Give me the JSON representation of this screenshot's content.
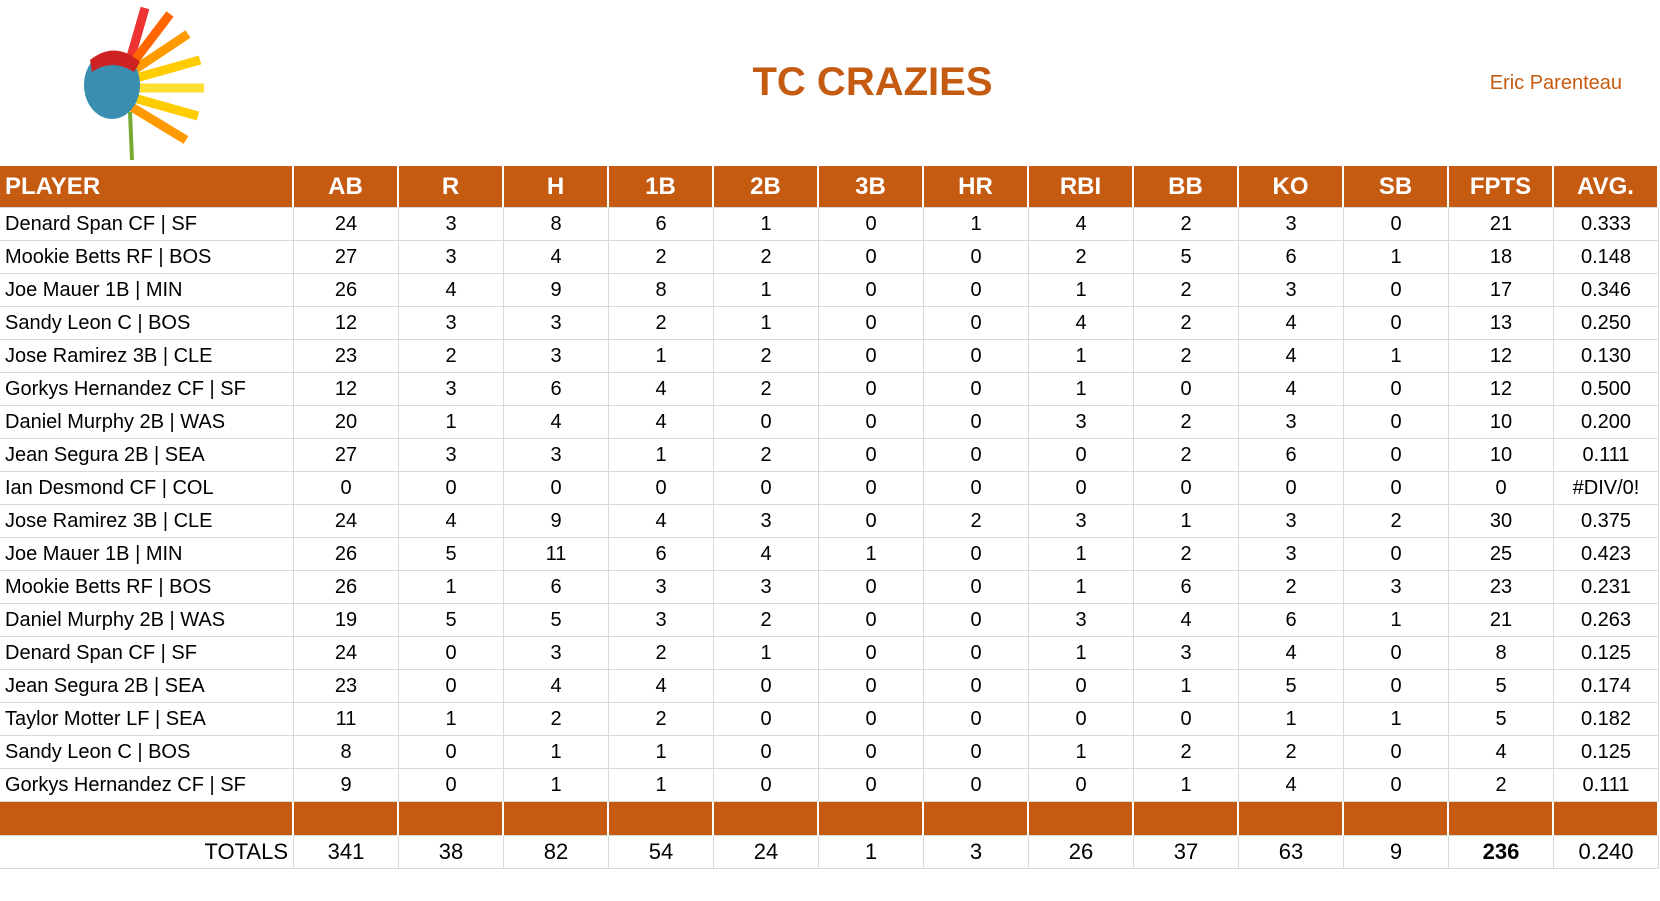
{
  "header": {
    "title": "TC CRAZIES",
    "owner": "Eric Parenteau"
  },
  "table": {
    "columns": [
      "PLAYER",
      "AB",
      "R",
      "H",
      "1B",
      "2B",
      "3B",
      "HR",
      "RBI",
      "BB",
      "KO",
      "SB",
      "FPTS",
      "AVG."
    ],
    "rows": [
      [
        "Denard Span CF | SF",
        "24",
        "3",
        "8",
        "6",
        "1",
        "0",
        "1",
        "4",
        "2",
        "3",
        "0",
        "21",
        "0.333"
      ],
      [
        "Mookie Betts RF | BOS",
        "27",
        "3",
        "4",
        "2",
        "2",
        "0",
        "0",
        "2",
        "5",
        "6",
        "1",
        "18",
        "0.148"
      ],
      [
        "Joe Mauer 1B | MIN",
        "26",
        "4",
        "9",
        "8",
        "1",
        "0",
        "0",
        "1",
        "2",
        "3",
        "0",
        "17",
        "0.346"
      ],
      [
        "Sandy Leon C | BOS",
        "12",
        "3",
        "3",
        "2",
        "1",
        "0",
        "0",
        "4",
        "2",
        "4",
        "0",
        "13",
        "0.250"
      ],
      [
        "Jose Ramirez 3B | CLE",
        "23",
        "2",
        "3",
        "1",
        "2",
        "0",
        "0",
        "1",
        "2",
        "4",
        "1",
        "12",
        "0.130"
      ],
      [
        "Gorkys Hernandez CF | SF",
        "12",
        "3",
        "6",
        "4",
        "2",
        "0",
        "0",
        "1",
        "0",
        "4",
        "0",
        "12",
        "0.500"
      ],
      [
        "Daniel Murphy 2B | WAS",
        "20",
        "1",
        "4",
        "4",
        "0",
        "0",
        "0",
        "3",
        "2",
        "3",
        "0",
        "10",
        "0.200"
      ],
      [
        "Jean Segura 2B | SEA",
        "27",
        "3",
        "3",
        "1",
        "2",
        "0",
        "0",
        "0",
        "2",
        "6",
        "0",
        "10",
        "0.111"
      ],
      [
        "Ian Desmond CF | COL",
        "0",
        "0",
        "0",
        "0",
        "0",
        "0",
        "0",
        "0",
        "0",
        "0",
        "0",
        "0",
        "#DIV/0!"
      ],
      [
        "Jose Ramirez 3B | CLE",
        "24",
        "4",
        "9",
        "4",
        "3",
        "0",
        "2",
        "3",
        "1",
        "3",
        "2",
        "30",
        "0.375"
      ],
      [
        "Joe Mauer 1B | MIN",
        "26",
        "5",
        "11",
        "6",
        "4",
        "1",
        "0",
        "1",
        "2",
        "3",
        "0",
        "25",
        "0.423"
      ],
      [
        "Mookie Betts RF | BOS",
        "26",
        "1",
        "6",
        "3",
        "3",
        "0",
        "0",
        "1",
        "6",
        "2",
        "3",
        "23",
        "0.231"
      ],
      [
        "Daniel Murphy 2B | WAS",
        "19",
        "5",
        "5",
        "3",
        "2",
        "0",
        "0",
        "3",
        "4",
        "6",
        "1",
        "21",
        "0.263"
      ],
      [
        "Denard Span CF | SF",
        "24",
        "0",
        "3",
        "2",
        "1",
        "0",
        "0",
        "1",
        "3",
        "4",
        "0",
        "8",
        "0.125"
      ],
      [
        "Jean Segura 2B | SEA",
        "23",
        "0",
        "4",
        "4",
        "0",
        "0",
        "0",
        "0",
        "1",
        "5",
        "0",
        "5",
        "0.174"
      ],
      [
        "Taylor Motter LF | SEA",
        "11",
        "1",
        "2",
        "2",
        "0",
        "0",
        "0",
        "0",
        "0",
        "1",
        "1",
        "5",
        "0.182"
      ],
      [
        "Sandy Leon C | BOS",
        "8",
        "0",
        "1",
        "1",
        "0",
        "0",
        "0",
        "1",
        "2",
        "2",
        "0",
        "4",
        "0.125"
      ],
      [
        "Gorkys Hernandez CF | SF",
        "9",
        "0",
        "1",
        "1",
        "0",
        "0",
        "0",
        "0",
        "1",
        "4",
        "0",
        "2",
        "0.111"
      ]
    ]
  },
  "totals": {
    "label": "TOTALS",
    "values": [
      "341",
      "38",
      "82",
      "54",
      "24",
      "1",
      "3",
      "26",
      "37",
      "63",
      "9",
      "236",
      "0.240"
    ]
  }
}
